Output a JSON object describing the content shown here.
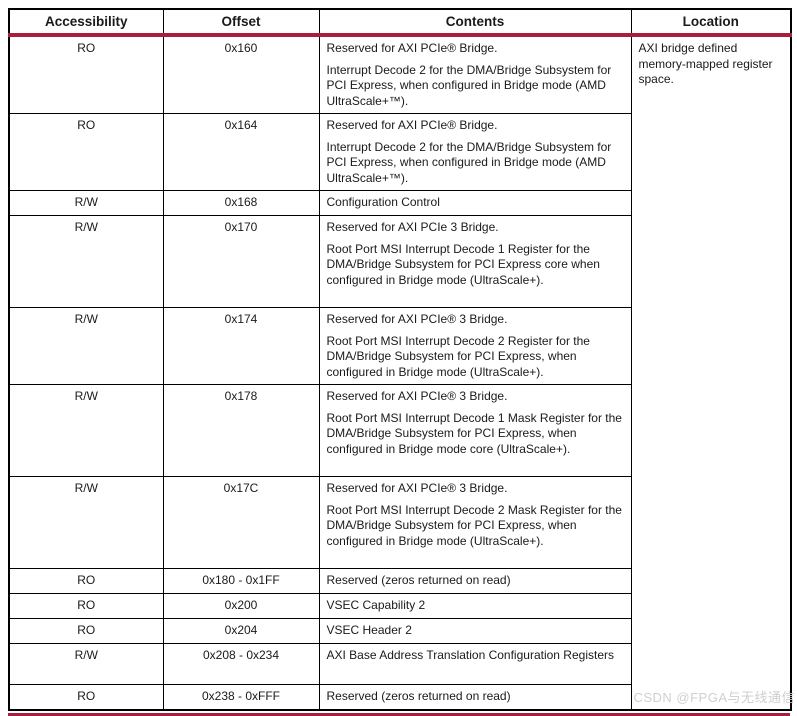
{
  "page": {
    "accent_color": "#A81D40",
    "watermark": "CSDN @FPGA与无线通信"
  },
  "table": {
    "headers": [
      "Accessibility",
      "Offset",
      "Contents",
      "Location"
    ],
    "location_note": "AXI bridge defined memory-mapped register space.",
    "rows": [
      {
        "accessibility": "RO",
        "offset": "0x160",
        "contents": [
          "Reserved for AXI PCIe® Bridge.",
          "Interrupt Decode 2 for the DMA/Bridge Subsystem for PCI Express, when configured in Bridge mode (AMD UltraScale+™)."
        ]
      },
      {
        "accessibility": "RO",
        "offset": "0x164",
        "contents": [
          "Reserved for AXI PCIe® Bridge.",
          "Interrupt Decode 2 for the DMA/Bridge Subsystem for PCI Express, when configured in Bridge mode (AMD UltraScale+™)."
        ]
      },
      {
        "accessibility": "R/W",
        "offset": "0x168",
        "contents": [
          "Configuration Control"
        ]
      },
      {
        "accessibility": "R/W",
        "offset": "0x170",
        "contents": [
          "Reserved for AXI PCIe 3 Bridge.",
          "Root Port MSI Interrupt Decode 1 Register for the DMA/Bridge Subsystem for PCI Express core when configured in Bridge mode (UltraScale+)."
        ]
      },
      {
        "accessibility": "R/W",
        "offset": "0x174",
        "contents": [
          "Reserved for AXI PCIe® 3 Bridge.",
          "Root Port MSI Interrupt Decode 2 Register for the DMA/Bridge Subsystem for PCI Express, when configured in Bridge mode (UltraScale+)."
        ]
      },
      {
        "accessibility": "R/W",
        "offset": "0x178",
        "contents": [
          "Reserved for AXI PCIe® 3 Bridge.",
          "Root Port MSI Interrupt Decode 1 Mask Register for the DMA/Bridge Subsystem for PCI Express, when configured in Bridge mode core (UltraScale+)."
        ]
      },
      {
        "accessibility": "R/W",
        "offset": "0x17C",
        "contents": [
          "Reserved for AXI PCIe® 3 Bridge.",
          "Root Port MSI Interrupt Decode 2 Mask Register for the DMA/Bridge Subsystem for PCI Express, when configured in Bridge mode (UltraScale+)."
        ]
      },
      {
        "accessibility": "RO",
        "offset": "0x180 - 0x1FF",
        "contents": [
          "Reserved (zeros returned on read)"
        ]
      },
      {
        "accessibility": "RO",
        "offset": "0x200",
        "contents": [
          "VSEC Capability 2"
        ]
      },
      {
        "accessibility": "RO",
        "offset": "0x204",
        "contents": [
          "VSEC Header 2"
        ]
      },
      {
        "accessibility": "R/W",
        "offset": "0x208 - 0x234",
        "contents": [
          "AXI Base Address Translation Configuration Registers"
        ]
      },
      {
        "accessibility": "RO",
        "offset": "0x238 - 0xFFF",
        "contents": [
          "Reserved (zeros returned on read)"
        ]
      }
    ]
  }
}
